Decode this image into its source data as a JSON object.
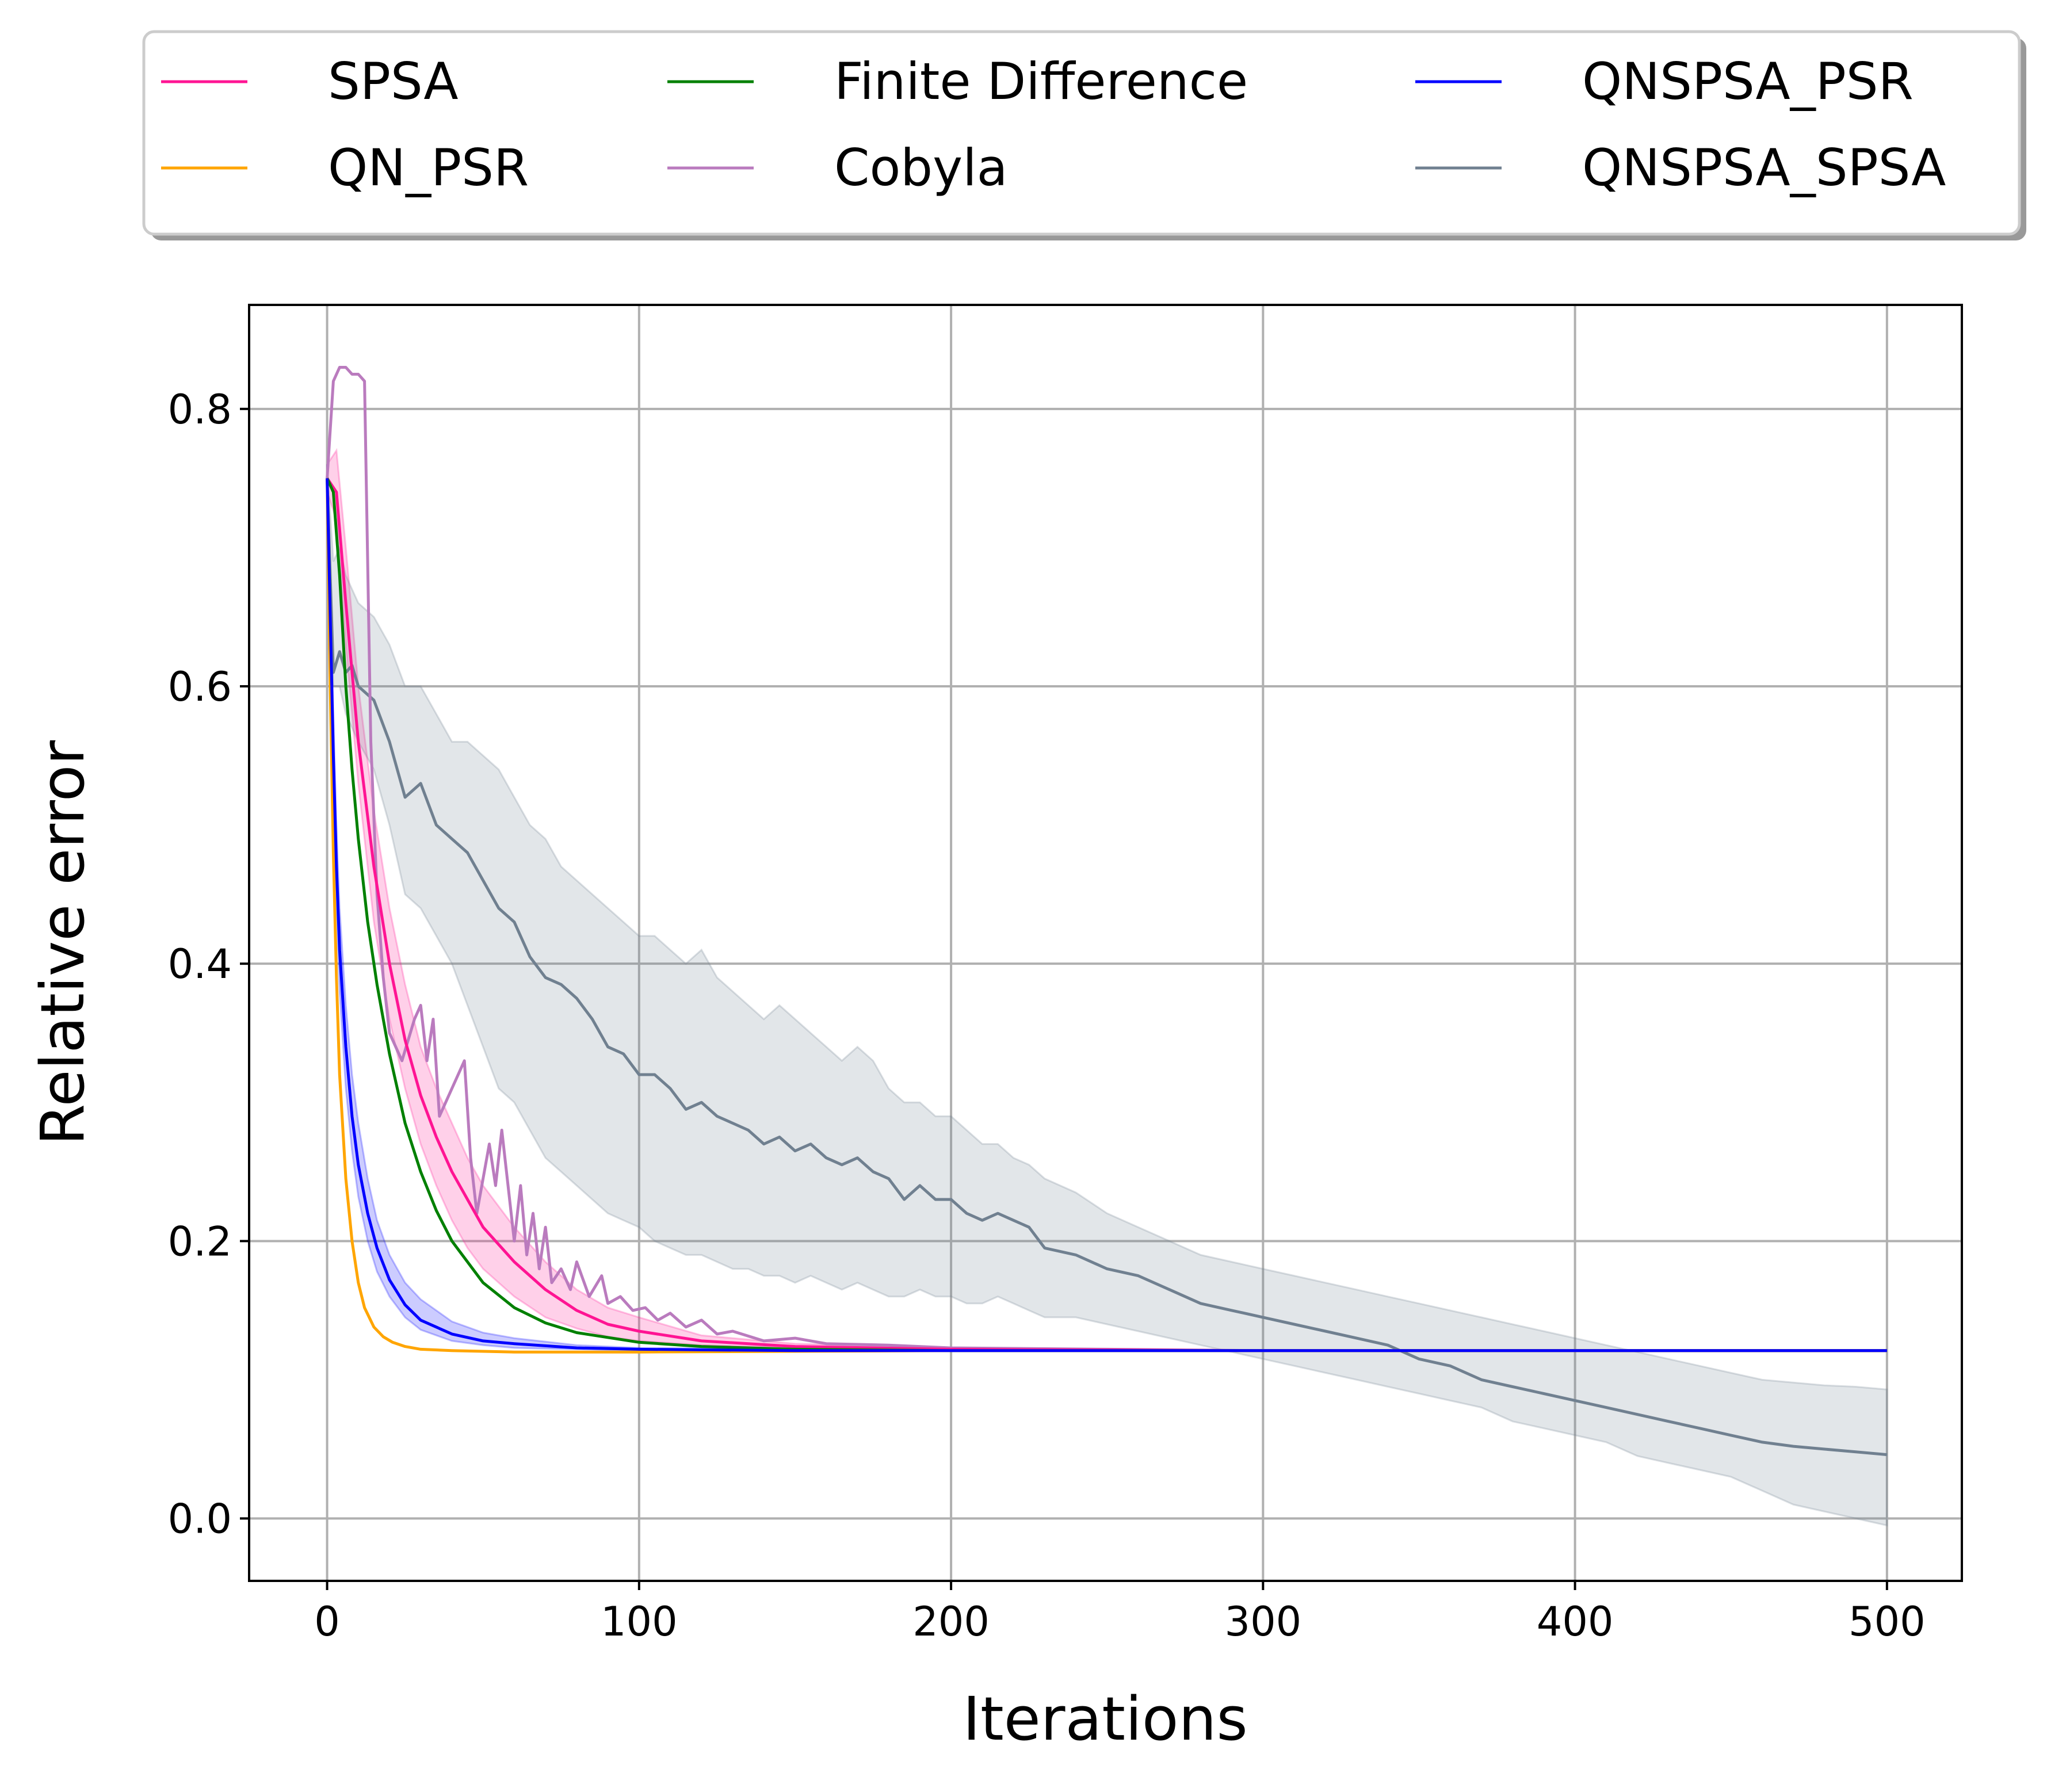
{
  "chart_data": {
    "type": "line",
    "title": "",
    "xlabel": "Iterations",
    "ylabel": "Relative error",
    "xlim": [
      -25,
      524
    ],
    "ylim": [
      -0.045,
      0.875
    ],
    "xticks": [
      0,
      100,
      200,
      300,
      400,
      500
    ],
    "xtick_labels": [
      "0",
      "100",
      "200",
      "300",
      "400",
      "500"
    ],
    "yticks": [
      0.0,
      0.2,
      0.4,
      0.6,
      0.8
    ],
    "ytick_labels": [
      "0.0",
      "0.2",
      "0.4",
      "0.6",
      "0.8"
    ],
    "grid": true,
    "legend": {
      "position": "top-outside",
      "columns": 3
    },
    "series": [
      {
        "name": "SPSA",
        "color": "#ff1493",
        "band": true,
        "x": [
          0,
          3,
          6,
          10,
          15,
          20,
          25,
          30,
          35,
          40,
          45,
          50,
          60,
          70,
          80,
          90,
          100,
          120,
          150,
          200,
          300,
          400,
          500
        ],
        "y": [
          0.75,
          0.74,
          0.66,
          0.56,
          0.47,
          0.4,
          0.345,
          0.305,
          0.275,
          0.25,
          0.23,
          0.21,
          0.185,
          0.165,
          0.15,
          0.14,
          0.135,
          0.128,
          0.124,
          0.122,
          0.121,
          0.121,
          0.121
        ],
        "y_low": [
          0.74,
          0.72,
          0.63,
          0.53,
          0.43,
          0.36,
          0.31,
          0.27,
          0.24,
          0.215,
          0.195,
          0.18,
          0.16,
          0.145,
          0.137,
          0.131,
          0.128,
          0.125,
          0.123,
          0.122,
          0.121,
          0.121,
          0.121
        ],
        "y_high": [
          0.76,
          0.77,
          0.7,
          0.6,
          0.51,
          0.44,
          0.385,
          0.34,
          0.31,
          0.285,
          0.26,
          0.24,
          0.21,
          0.185,
          0.165,
          0.152,
          0.145,
          0.132,
          0.126,
          0.123,
          0.121,
          0.121,
          0.121
        ]
      },
      {
        "name": "QN_PSR",
        "color": "#ffa500",
        "band": false,
        "x": [
          0,
          1,
          2,
          3,
          4,
          6,
          8,
          10,
          12,
          15,
          18,
          21,
          25,
          30,
          40,
          60,
          100,
          200,
          300,
          400,
          500
        ],
        "y": [
          0.75,
          0.6,
          0.48,
          0.39,
          0.32,
          0.245,
          0.2,
          0.17,
          0.152,
          0.138,
          0.131,
          0.127,
          0.124,
          0.122,
          0.121,
          0.12,
          0.12,
          0.121,
          0.121,
          0.121,
          0.121
        ]
      },
      {
        "name": "Finite Difference",
        "color": "#008000",
        "band": false,
        "x": [
          0,
          2,
          4,
          6,
          8,
          10,
          13,
          16,
          20,
          25,
          30,
          35,
          40,
          50,
          60,
          70,
          80,
          100,
          120,
          150,
          200,
          300,
          400,
          500
        ],
        "y": [
          0.75,
          0.74,
          0.68,
          0.6,
          0.54,
          0.49,
          0.43,
          0.385,
          0.335,
          0.285,
          0.25,
          0.222,
          0.2,
          0.17,
          0.152,
          0.141,
          0.134,
          0.127,
          0.124,
          0.122,
          0.121,
          0.121,
          0.121,
          0.121
        ]
      },
      {
        "name": "Cobyla",
        "color": "#ba7bbe",
        "band": false,
        "x": [
          0,
          2,
          4,
          6,
          8,
          10,
          12,
          14,
          16,
          18,
          20,
          24,
          28,
          30,
          32,
          34,
          36,
          40,
          44,
          46,
          48,
          52,
          54,
          56,
          60,
          62,
          64,
          66,
          68,
          70,
          72,
          75,
          78,
          80,
          84,
          88,
          90,
          94,
          98,
          102,
          106,
          110,
          115,
          120,
          125,
          130,
          140,
          150,
          160,
          180,
          200,
          250,
          300,
          400,
          500
        ],
        "y": [
          0.75,
          0.82,
          0.83,
          0.83,
          0.825,
          0.825,
          0.82,
          0.56,
          0.45,
          0.39,
          0.35,
          0.33,
          0.36,
          0.37,
          0.33,
          0.36,
          0.29,
          0.31,
          0.33,
          0.26,
          0.22,
          0.27,
          0.24,
          0.28,
          0.2,
          0.24,
          0.19,
          0.22,
          0.18,
          0.21,
          0.17,
          0.18,
          0.165,
          0.185,
          0.16,
          0.175,
          0.155,
          0.16,
          0.15,
          0.152,
          0.143,
          0.148,
          0.138,
          0.143,
          0.133,
          0.135,
          0.128,
          0.13,
          0.126,
          0.125,
          0.123,
          0.122,
          0.121,
          0.121,
          0.121
        ]
      },
      {
        "name": "QNSPSA_PSR",
        "color": "#0000ff",
        "band": true,
        "x": [
          0,
          1,
          2,
          3,
          4,
          6,
          8,
          10,
          13,
          16,
          20,
          25,
          30,
          40,
          50,
          60,
          80,
          100,
          150,
          200,
          300,
          400,
          500
        ],
        "y": [
          0.75,
          0.65,
          0.55,
          0.47,
          0.41,
          0.34,
          0.29,
          0.255,
          0.22,
          0.195,
          0.172,
          0.154,
          0.143,
          0.133,
          0.128,
          0.126,
          0.123,
          0.122,
          0.121,
          0.121,
          0.121,
          0.121,
          0.121
        ],
        "y_low": [
          0.74,
          0.63,
          0.52,
          0.44,
          0.38,
          0.31,
          0.265,
          0.232,
          0.2,
          0.178,
          0.16,
          0.145,
          0.136,
          0.128,
          0.125,
          0.123,
          0.122,
          0.121,
          0.121,
          0.121,
          0.121,
          0.121,
          0.121
        ],
        "y_high": [
          0.76,
          0.67,
          0.58,
          0.5,
          0.44,
          0.37,
          0.32,
          0.285,
          0.245,
          0.215,
          0.19,
          0.17,
          0.158,
          0.142,
          0.134,
          0.13,
          0.125,
          0.123,
          0.122,
          0.121,
          0.121,
          0.121,
          0.121
        ]
      },
      {
        "name": "QNSPSA_SPSA",
        "color": "#708090",
        "band": true,
        "x": [
          0,
          2,
          4,
          6,
          8,
          10,
          15,
          20,
          25,
          30,
          35,
          40,
          45,
          50,
          55,
          60,
          65,
          70,
          75,
          80,
          85,
          90,
          95,
          100,
          105,
          110,
          115,
          120,
          125,
          130,
          135,
          140,
          145,
          150,
          155,
          160,
          165,
          170,
          175,
          180,
          185,
          190,
          195,
          200,
          205,
          210,
          215,
          220,
          225,
          230,
          240,
          250,
          260,
          270,
          280,
          290,
          300,
          310,
          320,
          330,
          340,
          350,
          360,
          370,
          380,
          390,
          400,
          410,
          420,
          430,
          440,
          450,
          460,
          470,
          480,
          490,
          500
        ],
        "y": [
          0.75,
          0.61,
          0.625,
          0.61,
          0.615,
          0.6,
          0.59,
          0.56,
          0.52,
          0.53,
          0.5,
          0.49,
          0.48,
          0.46,
          0.44,
          0.43,
          0.405,
          0.39,
          0.385,
          0.375,
          0.36,
          0.34,
          0.335,
          0.32,
          0.32,
          0.31,
          0.295,
          0.3,
          0.29,
          0.285,
          0.28,
          0.27,
          0.275,
          0.265,
          0.27,
          0.26,
          0.255,
          0.26,
          0.25,
          0.245,
          0.23,
          0.24,
          0.23,
          0.23,
          0.22,
          0.215,
          0.22,
          0.215,
          0.21,
          0.195,
          0.19,
          0.18,
          0.175,
          0.165,
          0.155,
          0.15,
          0.145,
          0.14,
          0.135,
          0.13,
          0.125,
          0.115,
          0.11,
          0.1,
          0.095,
          0.09,
          0.085,
          0.08,
          0.075,
          0.07,
          0.065,
          0.06,
          0.055,
          0.052,
          0.05,
          0.048,
          0.046
        ],
        "y_low": [
          0.74,
          0.6,
          0.6,
          0.58,
          0.57,
          0.56,
          0.54,
          0.5,
          0.45,
          0.44,
          0.42,
          0.4,
          0.37,
          0.34,
          0.31,
          0.3,
          0.28,
          0.26,
          0.25,
          0.24,
          0.23,
          0.22,
          0.215,
          0.21,
          0.2,
          0.195,
          0.19,
          0.19,
          0.185,
          0.18,
          0.18,
          0.175,
          0.175,
          0.17,
          0.175,
          0.17,
          0.165,
          0.17,
          0.165,
          0.16,
          0.16,
          0.165,
          0.16,
          0.16,
          0.155,
          0.155,
          0.16,
          0.155,
          0.15,
          0.145,
          0.145,
          0.14,
          0.135,
          0.13,
          0.125,
          0.12,
          0.115,
          0.11,
          0.105,
          0.1,
          0.095,
          0.09,
          0.085,
          0.08,
          0.07,
          0.065,
          0.06,
          0.055,
          0.045,
          0.04,
          0.035,
          0.03,
          0.02,
          0.01,
          0.005,
          0.0,
          -0.005
        ],
        "y_high": [
          0.76,
          0.69,
          0.7,
          0.68,
          0.67,
          0.66,
          0.65,
          0.63,
          0.6,
          0.6,
          0.58,
          0.56,
          0.56,
          0.55,
          0.54,
          0.52,
          0.5,
          0.49,
          0.47,
          0.46,
          0.45,
          0.44,
          0.43,
          0.42,
          0.42,
          0.41,
          0.4,
          0.41,
          0.39,
          0.38,
          0.37,
          0.36,
          0.37,
          0.36,
          0.35,
          0.34,
          0.33,
          0.34,
          0.33,
          0.31,
          0.3,
          0.3,
          0.29,
          0.29,
          0.28,
          0.27,
          0.27,
          0.26,
          0.255,
          0.245,
          0.235,
          0.22,
          0.21,
          0.2,
          0.19,
          0.185,
          0.18,
          0.175,
          0.17,
          0.165,
          0.16,
          0.155,
          0.15,
          0.145,
          0.14,
          0.135,
          0.13,
          0.125,
          0.12,
          0.115,
          0.11,
          0.105,
          0.1,
          0.098,
          0.096,
          0.095,
          0.093
        ]
      }
    ]
  }
}
